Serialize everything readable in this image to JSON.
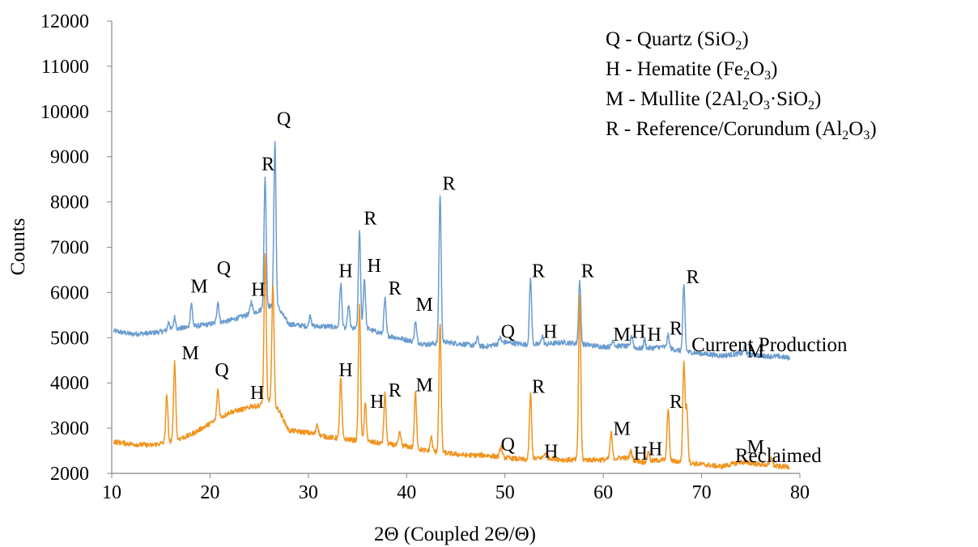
{
  "chart_data": {
    "type": "line",
    "title": "",
    "xlabel": "2Θ (Coupled 2Θ/Θ)",
    "ylabel": "Counts",
    "xlim": [
      10,
      80
    ],
    "ylim": [
      2000,
      12000
    ],
    "x_ticks": [
      10,
      20,
      30,
      40,
      50,
      60,
      70,
      80
    ],
    "y_ticks": [
      2000,
      3000,
      4000,
      5000,
      6000,
      7000,
      8000,
      9000,
      10000,
      11000,
      12000
    ],
    "grid": false,
    "legend_position": "top-right",
    "legend": [
      {
        "text": "Q - Quartz (SiO",
        "sub": [
          "2"
        ],
        "after": [
          ")"
        ]
      },
      {
        "text": "H - Hematite (Fe",
        "sub": [
          "2",
          "3"
        ],
        "after": [
          "O",
          ")"
        ]
      },
      {
        "text": "M - Mullite (2Al",
        "sub": [
          "2",
          "3",
          "2"
        ],
        "after": [
          "O",
          "·SiO",
          ")"
        ]
      },
      {
        "text": "R - Reference/Corundum (Al",
        "sub": [
          "2",
          "3"
        ],
        "after": [
          "O",
          ")"
        ]
      }
    ],
    "series": [
      {
        "name": "Current Production",
        "color": "#6a9ccf",
        "baseline": [
          [
            10.2,
            5150
          ],
          [
            12,
            5080
          ],
          [
            14,
            5100
          ],
          [
            16,
            5170
          ],
          [
            18,
            5240
          ],
          [
            20,
            5300
          ],
          [
            22,
            5380
          ],
          [
            24,
            5520
          ],
          [
            25,
            5600
          ],
          [
            26,
            5700
          ],
          [
            27,
            5650
          ],
          [
            28,
            5300
          ],
          [
            30,
            5250
          ],
          [
            32,
            5250
          ],
          [
            34,
            5200
          ],
          [
            36,
            5200
          ],
          [
            38,
            5050
          ],
          [
            40,
            4950
          ],
          [
            42,
            4850
          ],
          [
            44,
            4900
          ],
          [
            46,
            4850
          ],
          [
            48,
            4800
          ],
          [
            50,
            4900
          ],
          [
            52,
            4850
          ],
          [
            54,
            4850
          ],
          [
            56,
            4900
          ],
          [
            58,
            4850
          ],
          [
            60,
            4800
          ],
          [
            62,
            4820
          ],
          [
            64,
            4750
          ],
          [
            66,
            4800
          ],
          [
            68,
            4700
          ],
          [
            70,
            4650
          ],
          [
            72,
            4600
          ],
          [
            74,
            4650
          ],
          [
            76,
            4600
          ],
          [
            78,
            4580
          ],
          [
            79,
            4550
          ]
        ],
        "peaks": [
          [
            15.8,
            5350
          ],
          [
            16.4,
            5450
          ],
          [
            18.1,
            5750
          ],
          [
            20.8,
            5800
          ],
          [
            24.2,
            5800
          ],
          [
            25.6,
            8550
          ],
          [
            26.6,
            9350
          ],
          [
            30.2,
            5500
          ],
          [
            33.3,
            6200
          ],
          [
            34.1,
            5700
          ],
          [
            35.2,
            7350
          ],
          [
            35.7,
            6300
          ],
          [
            37.8,
            5850
          ],
          [
            40.9,
            5350
          ],
          [
            43.4,
            8150
          ],
          [
            47.2,
            5000
          ],
          [
            49.5,
            5000
          ],
          [
            52.6,
            6300
          ],
          [
            53.8,
            5050
          ],
          [
            57.6,
            6250
          ],
          [
            61,
            4950
          ],
          [
            62.9,
            5050
          ],
          [
            64.2,
            4950
          ],
          [
            66.6,
            5050
          ],
          [
            68.2,
            6150
          ],
          [
            74.4,
            4800
          ]
        ]
      },
      {
        "name": "Reclaimed",
        "color": "#f0941f",
        "baseline": [
          [
            10.2,
            2700
          ],
          [
            12,
            2650
          ],
          [
            14,
            2620
          ],
          [
            16,
            2700
          ],
          [
            18,
            2850
          ],
          [
            20,
            3100
          ],
          [
            22,
            3350
          ],
          [
            24,
            3450
          ],
          [
            25,
            3500
          ],
          [
            26,
            3600
          ],
          [
            27,
            3400
          ],
          [
            28,
            2950
          ],
          [
            30,
            2900
          ],
          [
            32,
            2800
          ],
          [
            34,
            2750
          ],
          [
            36,
            2700
          ],
          [
            38,
            2650
          ],
          [
            40,
            2600
          ],
          [
            42,
            2500
          ],
          [
            44,
            2450
          ],
          [
            46,
            2400
          ],
          [
            48,
            2400
          ],
          [
            50,
            2350
          ],
          [
            52,
            2300
          ],
          [
            54,
            2350
          ],
          [
            56,
            2300
          ],
          [
            58,
            2300
          ],
          [
            60,
            2300
          ],
          [
            62,
            2350
          ],
          [
            64,
            2250
          ],
          [
            66,
            2300
          ],
          [
            68,
            2250
          ],
          [
            70,
            2200
          ],
          [
            72,
            2150
          ],
          [
            74,
            2250
          ],
          [
            76,
            2200
          ],
          [
            78,
            2150
          ],
          [
            79,
            2150
          ]
        ],
        "peaks": [
          [
            15.6,
            3700
          ],
          [
            16.4,
            4450
          ],
          [
            20.8,
            3850
          ],
          [
            24.2,
            3500
          ],
          [
            25.6,
            6800
          ],
          [
            26.4,
            6200
          ],
          [
            30.9,
            3100
          ],
          [
            33.3,
            4100
          ],
          [
            35.2,
            5700
          ],
          [
            35.8,
            3550
          ],
          [
            37.8,
            3750
          ],
          [
            39.3,
            2900
          ],
          [
            40.9,
            3800
          ],
          [
            42.5,
            2800
          ],
          [
            43.4,
            5300
          ],
          [
            49.6,
            2600
          ],
          [
            52.6,
            3750
          ],
          [
            54.1,
            2450
          ],
          [
            57.6,
            5900
          ],
          [
            60.8,
            2900
          ],
          [
            62.8,
            2500
          ],
          [
            64.6,
            2500
          ],
          [
            66.6,
            3450
          ],
          [
            68.2,
            4450
          ],
          [
            68.5,
            3450
          ],
          [
            77.1,
            2350
          ]
        ]
      }
    ],
    "series_labels": [
      {
        "text": "Current Production",
        "x": 76.9,
        "y": 4700
      },
      {
        "text": "Reclaimed",
        "x": 77.8,
        "y": 2250
      }
    ],
    "annotations": [
      {
        "text": "M",
        "x": 18.9,
        "y": 6000
      },
      {
        "text": "Q",
        "x": 21.4,
        "y": 6400
      },
      {
        "text": "H",
        "x": 24.9,
        "y": 5930
      },
      {
        "text": "R",
        "x": 25.9,
        "y": 8700
      },
      {
        "text": "Q",
        "x": 27.5,
        "y": 9700
      },
      {
        "text": "H",
        "x": 33.8,
        "y": 6340
      },
      {
        "text": "H",
        "x": 36.7,
        "y": 6450
      },
      {
        "text": "R",
        "x": 36.3,
        "y": 7500
      },
      {
        "text": "R",
        "x": 38.8,
        "y": 5950
      },
      {
        "text": "M",
        "x": 41.8,
        "y": 5600
      },
      {
        "text": "R",
        "x": 44.3,
        "y": 8270
      },
      {
        "text": "Q",
        "x": 50.3,
        "y": 5000
      },
      {
        "text": "H",
        "x": 54.6,
        "y": 5000
      },
      {
        "text": "R",
        "x": 53.4,
        "y": 6340
      },
      {
        "text": "R",
        "x": 58.4,
        "y": 6340
      },
      {
        "text": "M",
        "x": 61.9,
        "y": 4930
      },
      {
        "text": "H",
        "x": 63.6,
        "y": 5000
      },
      {
        "text": "H",
        "x": 65.2,
        "y": 4930
      },
      {
        "text": "R",
        "x": 67.4,
        "y": 5070
      },
      {
        "text": "R",
        "x": 69.1,
        "y": 6200
      },
      {
        "text": "M",
        "x": 75.5,
        "y": 4570
      },
      {
        "text": "M",
        "x": 18.0,
        "y": 4520
      },
      {
        "text": "Q",
        "x": 21.2,
        "y": 4150
      },
      {
        "text": "H",
        "x": 24.8,
        "y": 3650
      },
      {
        "text": "H",
        "x": 33.8,
        "y": 4150
      },
      {
        "text": "H",
        "x": 37.0,
        "y": 3450
      },
      {
        "text": "R",
        "x": 38.8,
        "y": 3700
      },
      {
        "text": "M",
        "x": 41.8,
        "y": 3820
      },
      {
        "text": "Q",
        "x": 50.3,
        "y": 2500
      },
      {
        "text": "R",
        "x": 53.4,
        "y": 3780
      },
      {
        "text": "H",
        "x": 54.7,
        "y": 2350
      },
      {
        "text": "M",
        "x": 61.9,
        "y": 2850
      },
      {
        "text": "H",
        "x": 63.8,
        "y": 2300
      },
      {
        "text": "H",
        "x": 65.3,
        "y": 2400
      },
      {
        "text": "R",
        "x": 67.4,
        "y": 3450
      },
      {
        "text": "M",
        "x": 75.5,
        "y": 2450
      }
    ]
  }
}
